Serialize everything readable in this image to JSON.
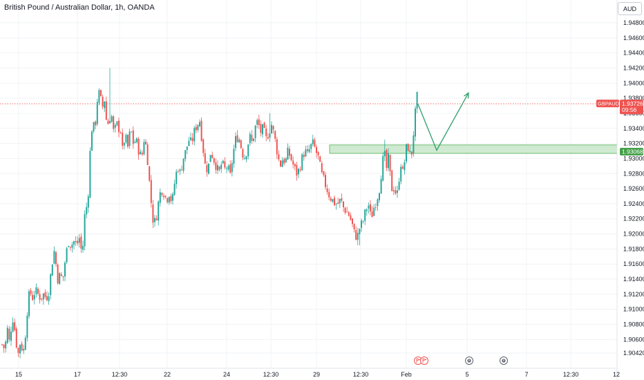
{
  "header": {
    "title": "British Pound / Australian Dollar, 1h, OANDA",
    "currency_button": "AUD"
  },
  "colors": {
    "up": "#26a69a",
    "down": "#ef5350",
    "price_line": "#ef5350",
    "zone_fill": "#c8e6c9",
    "zone_stroke": "#4caf50",
    "projection": "#2e9e6b",
    "text": "#131722"
  },
  "price_badge": {
    "symbol": "GBPAUD",
    "price": "1.93726",
    "countdown": "09:56"
  },
  "zone_badge": {
    "price": "1.93068"
  },
  "event_icons": [
    "flag-event-icon",
    "flag-event-icon",
    "economic-event-icon",
    "economic-event-icon"
  ],
  "chart_data": {
    "type": "candlestick",
    "y_ticks": [
      "1.94800",
      "1.94600",
      "1.94400",
      "1.94200",
      "1.94000",
      "1.93800",
      "1.93600",
      "1.93400",
      "1.93200",
      "1.93000",
      "1.92800",
      "1.92600",
      "1.92400",
      "1.92200",
      "1.92000",
      "1.91800",
      "1.91600",
      "1.91400",
      "1.91200",
      "1.91000",
      "1.90800",
      "1.90600",
      "1.90420"
    ],
    "x_ticks": [
      "15",
      "17",
      "12:30",
      "22",
      "24",
      "12:30",
      "29",
      "12:30",
      "Feb",
      "5",
      "7",
      "12:30",
      "12"
    ],
    "ylim": [
      1.9035,
      1.95
    ],
    "current_price": 1.93726,
    "zone": {
      "low": 1.93068,
      "high": 1.9318
    },
    "projection": [
      {
        "price": 1.9372
      },
      {
        "price": 1.9311
      },
      {
        "price": 1.9387
      }
    ],
    "candle_path": [
      [
        0,
        1.904
      ],
      [
        3,
        1.906
      ],
      [
        6,
        1.904
      ],
      [
        9,
        1.908
      ],
      [
        12,
        1.9055
      ],
      [
        15,
        1.9075
      ],
      [
        18,
        1.909
      ],
      [
        22,
        1.906
      ],
      [
        24,
        1.9045
      ],
      [
        26,
        1.904
      ],
      [
        28,
        1.9055
      ],
      [
        30,
        1.905
      ],
      [
        34,
        1.9045
      ],
      [
        38,
        1.9095
      ],
      [
        42,
        1.9125
      ],
      [
        46,
        1.9115
      ],
      [
        50,
        1.9125
      ],
      [
        54,
        1.912
      ],
      [
        58,
        1.9115
      ],
      [
        62,
        1.912
      ],
      [
        66,
        1.9115
      ],
      [
        70,
        1.9125
      ],
      [
        74,
        1.916
      ],
      [
        78,
        1.918
      ],
      [
        82,
        1.914
      ],
      [
        86,
        1.9145
      ],
      [
        90,
        1.914
      ],
      [
        94,
        1.917
      ],
      [
        98,
        1.919
      ],
      [
        102,
        1.9185
      ],
      [
        106,
        1.919
      ],
      [
        110,
        1.9185
      ],
      [
        114,
        1.9195
      ],
      [
        118,
        1.917
      ],
      [
        122,
        1.923
      ],
      [
        126,
        1.924
      ],
      [
        130,
        1.932
      ],
      [
        133,
        1.935
      ],
      [
        136,
        1.9335
      ],
      [
        140,
        1.938
      ],
      [
        144,
        1.939
      ],
      [
        146,
        1.9365
      ],
      [
        148,
        1.937
      ],
      [
        150,
        1.938
      ],
      [
        154,
        1.934
      ],
      [
        156,
        1.935
      ],
      [
        160,
        1.936
      ],
      [
        164,
        1.933
      ],
      [
        168,
        1.935
      ],
      [
        170,
        1.9325
      ],
      [
        172,
        1.9355
      ],
      [
        176,
        1.931
      ],
      [
        180,
        1.933
      ],
      [
        184,
        1.9315
      ],
      [
        188,
        1.934
      ],
      [
        192,
        1.932
      ],
      [
        196,
        1.9325
      ],
      [
        200,
        1.931
      ],
      [
        204,
        1.93
      ],
      [
        208,
        1.933
      ],
      [
        212,
        1.9305
      ],
      [
        216,
        1.926
      ],
      [
        220,
        1.922
      ],
      [
        224,
        1.9215
      ],
      [
        228,
        1.924
      ],
      [
        232,
        1.926
      ],
      [
        236,
        1.9255
      ],
      [
        240,
        1.9245
      ],
      [
        244,
        1.9255
      ],
      [
        248,
        1.924
      ],
      [
        252,
        1.927
      ],
      [
        256,
        1.929
      ],
      [
        260,
        1.928
      ],
      [
        264,
        1.93
      ],
      [
        268,
        1.931
      ],
      [
        272,
        1.9325
      ],
      [
        276,
        1.932
      ],
      [
        280,
        1.9335
      ],
      [
        284,
        1.9345
      ],
      [
        288,
        1.935
      ],
      [
        292,
        1.932
      ],
      [
        296,
        1.929
      ],
      [
        300,
        1.9285
      ],
      [
        304,
        1.931
      ],
      [
        308,
        1.93
      ],
      [
        312,
        1.929
      ],
      [
        316,
        1.928
      ],
      [
        320,
        1.9295
      ],
      [
        324,
        1.9285
      ],
      [
        328,
        1.929
      ],
      [
        332,
        1.9275
      ],
      [
        336,
        1.9305
      ],
      [
        340,
        1.9325
      ],
      [
        344,
        1.933
      ],
      [
        348,
        1.9315
      ],
      [
        352,
        1.93
      ],
      [
        356,
        1.931
      ],
      [
        360,
        1.933
      ],
      [
        364,
        1.932
      ],
      [
        368,
        1.934
      ],
      [
        372,
        1.935
      ],
      [
        376,
        1.9335
      ],
      [
        380,
        1.934
      ],
      [
        384,
        1.9325
      ],
      [
        388,
        1.9335
      ],
      [
        392,
        1.9345
      ],
      [
        396,
        1.933
      ],
      [
        400,
        1.931
      ],
      [
        404,
        1.929
      ],
      [
        408,
        1.93
      ],
      [
        412,
        1.9295
      ],
      [
        416,
        1.931
      ],
      [
        420,
        1.93
      ],
      [
        424,
        1.929
      ],
      [
        428,
        1.928
      ],
      [
        432,
        1.9285
      ],
      [
        436,
        1.93
      ],
      [
        440,
        1.931
      ],
      [
        444,
        1.9305
      ],
      [
        448,
        1.9315
      ],
      [
        452,
        1.932
      ],
      [
        456,
        1.931
      ],
      [
        460,
        1.93
      ],
      [
        464,
        1.928
      ],
      [
        468,
        1.927
      ],
      [
        472,
        1.926
      ],
      [
        476,
        1.925
      ],
      [
        480,
        1.9245
      ],
      [
        484,
        1.924
      ],
      [
        488,
        1.924
      ],
      [
        492,
        1.9245
      ],
      [
        496,
        1.9235
      ],
      [
        500,
        1.923
      ],
      [
        504,
        1.9225
      ],
      [
        508,
        1.9215
      ],
      [
        512,
        1.92
      ],
      [
        516,
        1.9195
      ],
      [
        520,
        1.921
      ],
      [
        524,
        1.9215
      ],
      [
        528,
        1.923
      ],
      [
        532,
        1.924
      ],
      [
        536,
        1.922
      ],
      [
        540,
        1.9235
      ],
      [
        544,
        1.9245
      ],
      [
        548,
        1.926
      ],
      [
        552,
        1.929
      ],
      [
        555,
        1.931
      ],
      [
        558,
        1.9285
      ],
      [
        561,
        1.93
      ],
      [
        564,
        1.9275
      ],
      [
        567,
        1.9255
      ],
      [
        570,
        1.9265
      ],
      [
        573,
        1.9245
      ],
      [
        576,
        1.927
      ],
      [
        579,
        1.9295
      ],
      [
        582,
        1.928
      ],
      [
        585,
        1.93
      ],
      [
        588,
        1.932
      ],
      [
        591,
        1.931
      ],
      [
        594,
        1.93
      ],
      [
        597,
        1.933
      ],
      [
        600,
        1.936
      ],
      [
        603,
        1.9385
      ],
      [
        605,
        1.9375
      ]
    ],
    "candle_spikes": [
      {
        "x": 158,
        "high": 1.942
      },
      {
        "x": 390,
        "high": 1.936
      },
      {
        "x": 518,
        "low": 1.9185
      },
      {
        "x": 556,
        "high": 1.9325
      }
    ]
  }
}
